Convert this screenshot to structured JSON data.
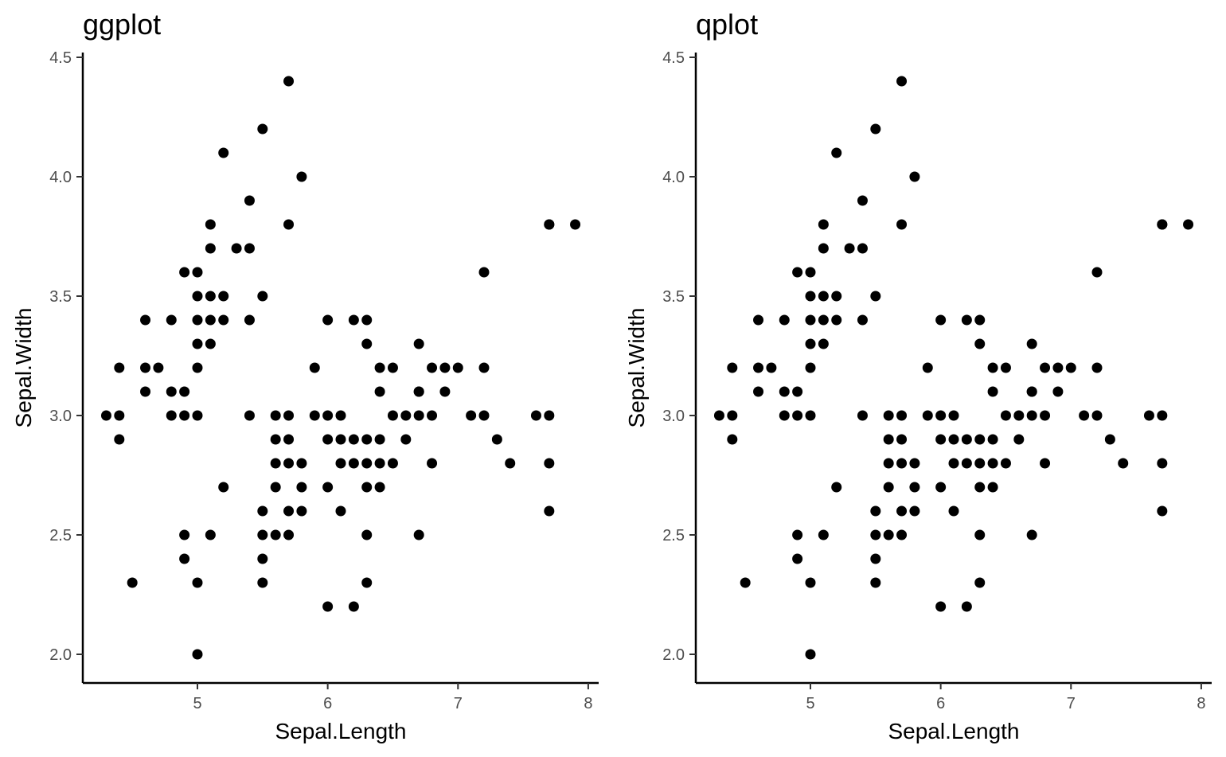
{
  "chart_data": [
    {
      "type": "scatter",
      "title": "ggplot",
      "xlabel": "Sepal.Length",
      "ylabel": "Sepal.Width",
      "xlim": [
        4.12,
        8.08
      ],
      "ylim": [
        1.88,
        4.52
      ],
      "x_ticks": [
        "5",
        "6",
        "7",
        "8"
      ],
      "y_ticks": [
        "2.0",
        "2.5",
        "3.0",
        "3.5",
        "4.0",
        "4.5"
      ],
      "grid": false,
      "point_color": "#000000",
      "x": [
        4.3,
        4.4,
        4.4,
        4.4,
        4.5,
        4.6,
        4.6,
        4.6,
        4.7,
        4.8,
        4.8,
        4.8,
        4.9,
        4.9,
        4.9,
        4.9,
        4.9,
        5.0,
        5.0,
        5.0,
        5.0,
        5.0,
        5.0,
        5.0,
        5.0,
        5.1,
        5.1,
        5.1,
        5.1,
        5.1,
        5.1,
        5.2,
        5.2,
        5.2,
        5.2,
        5.3,
        5.4,
        5.4,
        5.4,
        5.4,
        5.5,
        5.5,
        5.5,
        5.5,
        5.5,
        5.5,
        5.6,
        5.6,
        5.6,
        5.6,
        5.6,
        5.7,
        5.7,
        5.7,
        5.7,
        5.7,
        5.7,
        5.7,
        5.8,
        5.8,
        5.8,
        5.8,
        5.9,
        5.9,
        6.0,
        6.0,
        6.0,
        6.0,
        6.0,
        6.1,
        6.1,
        6.1,
        6.1,
        6.2,
        6.2,
        6.2,
        6.2,
        6.3,
        6.3,
        6.3,
        6.3,
        6.3,
        6.3,
        6.3,
        6.4,
        6.4,
        6.4,
        6.4,
        6.4,
        6.5,
        6.5,
        6.5,
        6.6,
        6.6,
        6.7,
        6.7,
        6.7,
        6.7,
        6.7,
        6.8,
        6.8,
        6.8,
        6.9,
        6.9,
        7.0,
        7.1,
        7.2,
        7.2,
        7.2,
        7.3,
        7.4,
        7.6,
        7.7,
        7.7,
        7.7,
        7.7,
        7.7,
        7.9
      ],
      "y": [
        3.0,
        2.9,
        3.0,
        3.2,
        2.3,
        3.1,
        3.2,
        3.4,
        3.2,
        3.0,
        3.1,
        3.4,
        2.4,
        2.5,
        3.0,
        3.1,
        3.6,
        2.0,
        2.3,
        3.0,
        3.2,
        3.3,
        3.4,
        3.5,
        3.6,
        2.5,
        3.3,
        3.4,
        3.5,
        3.7,
        3.8,
        2.7,
        3.4,
        3.5,
        4.1,
        3.7,
        3.0,
        3.4,
        3.7,
        3.9,
        2.3,
        2.4,
        2.5,
        2.6,
        3.5,
        4.2,
        2.5,
        2.7,
        2.8,
        2.9,
        3.0,
        2.5,
        2.6,
        2.8,
        2.9,
        3.0,
        3.8,
        4.4,
        2.6,
        2.7,
        2.8,
        4.0,
        3.0,
        3.2,
        2.2,
        2.7,
        2.9,
        3.0,
        3.4,
        2.6,
        2.8,
        2.9,
        3.0,
        2.2,
        2.8,
        2.9,
        3.4,
        2.3,
        2.5,
        2.7,
        2.8,
        2.9,
        3.3,
        3.4,
        2.7,
        2.8,
        2.9,
        3.1,
        3.2,
        2.8,
        3.0,
        3.2,
        2.9,
        3.0,
        2.5,
        3.0,
        3.1,
        3.3,
        3.1,
        2.8,
        3.0,
        3.2,
        3.1,
        3.2,
        3.2,
        3.0,
        3.0,
        3.2,
        3.6,
        2.9,
        2.8,
        3.0,
        2.6,
        2.8,
        3.0,
        3.8,
        3.8,
        3.8
      ]
    },
    {
      "type": "scatter",
      "title": "qplot",
      "xlabel": "Sepal.Length",
      "ylabel": "Sepal.Width",
      "xlim": [
        4.12,
        8.08
      ],
      "ylim": [
        1.88,
        4.52
      ],
      "x_ticks": [
        "5",
        "6",
        "7",
        "8"
      ],
      "y_ticks": [
        "2.0",
        "2.5",
        "3.0",
        "3.5",
        "4.0",
        "4.5"
      ],
      "grid": false,
      "point_color": "#000000",
      "x": [
        4.3,
        4.4,
        4.4,
        4.4,
        4.5,
        4.6,
        4.6,
        4.6,
        4.7,
        4.8,
        4.8,
        4.8,
        4.9,
        4.9,
        4.9,
        4.9,
        4.9,
        5.0,
        5.0,
        5.0,
        5.0,
        5.0,
        5.0,
        5.0,
        5.0,
        5.1,
        5.1,
        5.1,
        5.1,
        5.1,
        5.1,
        5.2,
        5.2,
        5.2,
        5.2,
        5.3,
        5.4,
        5.4,
        5.4,
        5.4,
        5.5,
        5.5,
        5.5,
        5.5,
        5.5,
        5.5,
        5.6,
        5.6,
        5.6,
        5.6,
        5.6,
        5.7,
        5.7,
        5.7,
        5.7,
        5.7,
        5.7,
        5.7,
        5.8,
        5.8,
        5.8,
        5.8,
        5.9,
        5.9,
        6.0,
        6.0,
        6.0,
        6.0,
        6.0,
        6.1,
        6.1,
        6.1,
        6.1,
        6.2,
        6.2,
        6.2,
        6.2,
        6.3,
        6.3,
        6.3,
        6.3,
        6.3,
        6.3,
        6.3,
        6.4,
        6.4,
        6.4,
        6.4,
        6.4,
        6.5,
        6.5,
        6.5,
        6.6,
        6.6,
        6.7,
        6.7,
        6.7,
        6.7,
        6.7,
        6.8,
        6.8,
        6.8,
        6.9,
        6.9,
        7.0,
        7.1,
        7.2,
        7.2,
        7.2,
        7.3,
        7.4,
        7.6,
        7.7,
        7.7,
        7.7,
        7.7,
        7.7,
        7.9
      ],
      "y": [
        3.0,
        2.9,
        3.0,
        3.2,
        2.3,
        3.1,
        3.2,
        3.4,
        3.2,
        3.0,
        3.1,
        3.4,
        2.4,
        2.5,
        3.0,
        3.1,
        3.6,
        2.0,
        2.3,
        3.0,
        3.2,
        3.3,
        3.4,
        3.5,
        3.6,
        2.5,
        3.3,
        3.4,
        3.5,
        3.7,
        3.8,
        2.7,
        3.4,
        3.5,
        4.1,
        3.7,
        3.0,
        3.4,
        3.7,
        3.9,
        2.3,
        2.4,
        2.5,
        2.6,
        3.5,
        4.2,
        2.5,
        2.7,
        2.8,
        2.9,
        3.0,
        2.5,
        2.6,
        2.8,
        2.9,
        3.0,
        3.8,
        4.4,
        2.6,
        2.7,
        2.8,
        4.0,
        3.0,
        3.2,
        2.2,
        2.7,
        2.9,
        3.0,
        3.4,
        2.6,
        2.8,
        2.9,
        3.0,
        2.2,
        2.8,
        2.9,
        3.4,
        2.3,
        2.5,
        2.7,
        2.8,
        2.9,
        3.3,
        3.4,
        2.7,
        2.8,
        2.9,
        3.1,
        3.2,
        2.8,
        3.0,
        3.2,
        2.9,
        3.0,
        2.5,
        3.0,
        3.1,
        3.3,
        3.1,
        2.8,
        3.0,
        3.2,
        3.1,
        3.2,
        3.2,
        3.0,
        3.0,
        3.2,
        3.6,
        2.9,
        2.8,
        3.0,
        2.6,
        2.8,
        3.0,
        3.8,
        3.8,
        3.8
      ]
    }
  ]
}
